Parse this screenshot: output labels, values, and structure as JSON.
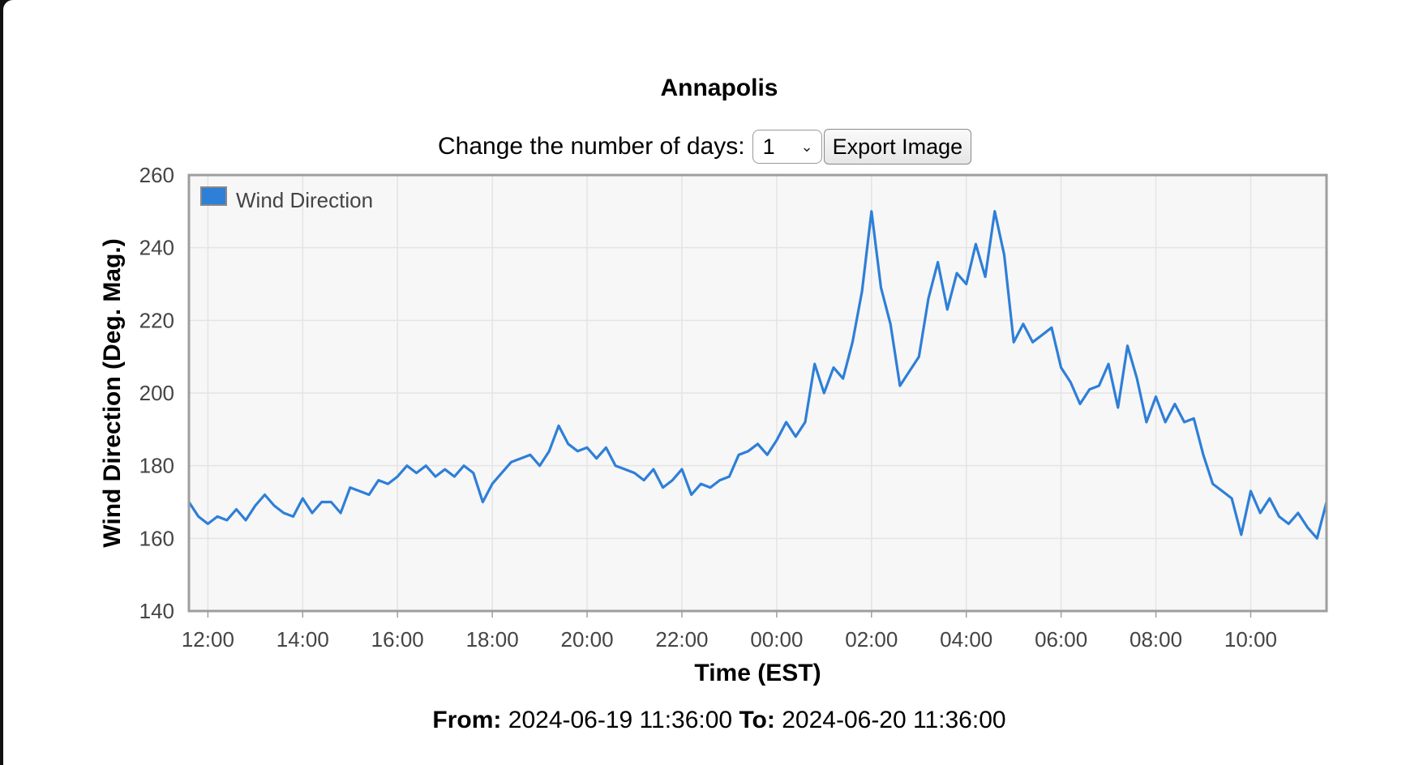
{
  "station": {
    "title": "Annapolis"
  },
  "controls": {
    "days_label": "Change the number of days:",
    "days_value": "1",
    "export_label": "Export Image"
  },
  "range": {
    "from_label": "From:",
    "from_value": "2024-06-19 11:36:00",
    "to_label": "To:",
    "to_value": "2024-06-20 11:36:00"
  },
  "colors": {
    "series": "#2e7fd8",
    "plot_bg": "#f7f7f7",
    "grid": "#e4e4e4",
    "frame": "#9e9e9e"
  },
  "chart_data": {
    "type": "line",
    "xlabel": "Time (EST)",
    "ylabel": "Wind Direction (Deg. Mag.)",
    "ylim": [
      140,
      260
    ],
    "yticks": [
      140,
      160,
      180,
      200,
      220,
      240,
      260
    ],
    "xlim": [
      "2024-06-19 11:36",
      "2024-06-20 11:36"
    ],
    "xticks": [
      {
        "t": "2024-06-19 12:00",
        "label": "12:00"
      },
      {
        "t": "2024-06-19 14:00",
        "label": "14:00"
      },
      {
        "t": "2024-06-19 16:00",
        "label": "16:00"
      },
      {
        "t": "2024-06-19 18:00",
        "label": "18:00"
      },
      {
        "t": "2024-06-19 20:00",
        "label": "20:00"
      },
      {
        "t": "2024-06-19 22:00",
        "label": "22:00"
      },
      {
        "t": "2024-06-20 00:00",
        "label": "00:00"
      },
      {
        "t": "2024-06-20 02:00",
        "label": "02:00"
      },
      {
        "t": "2024-06-20 04:00",
        "label": "04:00"
      },
      {
        "t": "2024-06-20 06:00",
        "label": "06:00"
      },
      {
        "t": "2024-06-20 08:00",
        "label": "08:00"
      },
      {
        "t": "2024-06-20 10:00",
        "label": "10:00"
      }
    ],
    "grid": true,
    "legend": {
      "position": "top-left"
    },
    "series": [
      {
        "name": "Wind Direction",
        "points": [
          [
            "2024-06-19 11:36",
            170
          ],
          [
            "2024-06-19 11:48",
            166
          ],
          [
            "2024-06-19 12:00",
            164
          ],
          [
            "2024-06-19 12:12",
            166
          ],
          [
            "2024-06-19 12:24",
            165
          ],
          [
            "2024-06-19 12:36",
            168
          ],
          [
            "2024-06-19 12:48",
            165
          ],
          [
            "2024-06-19 13:00",
            169
          ],
          [
            "2024-06-19 13:12",
            172
          ],
          [
            "2024-06-19 13:24",
            169
          ],
          [
            "2024-06-19 13:36",
            167
          ],
          [
            "2024-06-19 13:48",
            166
          ],
          [
            "2024-06-19 14:00",
            171
          ],
          [
            "2024-06-19 14:12",
            167
          ],
          [
            "2024-06-19 14:24",
            170
          ],
          [
            "2024-06-19 14:36",
            170
          ],
          [
            "2024-06-19 14:48",
            167
          ],
          [
            "2024-06-19 15:00",
            174
          ],
          [
            "2024-06-19 15:12",
            173
          ],
          [
            "2024-06-19 15:24",
            172
          ],
          [
            "2024-06-19 15:36",
            176
          ],
          [
            "2024-06-19 15:48",
            175
          ],
          [
            "2024-06-19 16:00",
            177
          ],
          [
            "2024-06-19 16:12",
            180
          ],
          [
            "2024-06-19 16:24",
            178
          ],
          [
            "2024-06-19 16:36",
            180
          ],
          [
            "2024-06-19 16:48",
            177
          ],
          [
            "2024-06-19 17:00",
            179
          ],
          [
            "2024-06-19 17:12",
            177
          ],
          [
            "2024-06-19 17:24",
            180
          ],
          [
            "2024-06-19 17:36",
            178
          ],
          [
            "2024-06-19 17:48",
            170
          ],
          [
            "2024-06-19 18:00",
            175
          ],
          [
            "2024-06-19 18:12",
            178
          ],
          [
            "2024-06-19 18:24",
            181
          ],
          [
            "2024-06-19 18:36",
            182
          ],
          [
            "2024-06-19 18:48",
            183
          ],
          [
            "2024-06-19 19:00",
            180
          ],
          [
            "2024-06-19 19:12",
            184
          ],
          [
            "2024-06-19 19:24",
            191
          ],
          [
            "2024-06-19 19:36",
            186
          ],
          [
            "2024-06-19 19:48",
            184
          ],
          [
            "2024-06-19 20:00",
            185
          ],
          [
            "2024-06-19 20:12",
            182
          ],
          [
            "2024-06-19 20:24",
            185
          ],
          [
            "2024-06-19 20:36",
            180
          ],
          [
            "2024-06-19 20:48",
            179
          ],
          [
            "2024-06-19 21:00",
            178
          ],
          [
            "2024-06-19 21:12",
            176
          ],
          [
            "2024-06-19 21:24",
            179
          ],
          [
            "2024-06-19 21:36",
            174
          ],
          [
            "2024-06-19 21:48",
            176
          ],
          [
            "2024-06-19 22:00",
            179
          ],
          [
            "2024-06-19 22:12",
            172
          ],
          [
            "2024-06-19 22:24",
            175
          ],
          [
            "2024-06-19 22:36",
            174
          ],
          [
            "2024-06-19 22:48",
            176
          ],
          [
            "2024-06-19 23:00",
            177
          ],
          [
            "2024-06-19 23:12",
            183
          ],
          [
            "2024-06-19 23:24",
            184
          ],
          [
            "2024-06-19 23:36",
            186
          ],
          [
            "2024-06-19 23:48",
            183
          ],
          [
            "2024-06-20 00:00",
            187
          ],
          [
            "2024-06-20 00:12",
            192
          ],
          [
            "2024-06-20 00:24",
            188
          ],
          [
            "2024-06-20 00:36",
            192
          ],
          [
            "2024-06-20 00:48",
            208
          ],
          [
            "2024-06-20 01:00",
            200
          ],
          [
            "2024-06-20 01:12",
            207
          ],
          [
            "2024-06-20 01:24",
            204
          ],
          [
            "2024-06-20 01:36",
            214
          ],
          [
            "2024-06-20 01:48",
            228
          ],
          [
            "2024-06-20 02:00",
            250
          ],
          [
            "2024-06-20 02:12",
            229
          ],
          [
            "2024-06-20 02:24",
            219
          ],
          [
            "2024-06-20 02:36",
            202
          ],
          [
            "2024-06-20 02:48",
            206
          ],
          [
            "2024-06-20 03:00",
            210
          ],
          [
            "2024-06-20 03:12",
            226
          ],
          [
            "2024-06-20 03:24",
            236
          ],
          [
            "2024-06-20 03:36",
            223
          ],
          [
            "2024-06-20 03:48",
            233
          ],
          [
            "2024-06-20 04:00",
            230
          ],
          [
            "2024-06-20 04:12",
            241
          ],
          [
            "2024-06-20 04:24",
            232
          ],
          [
            "2024-06-20 04:36",
            250
          ],
          [
            "2024-06-20 04:48",
            238
          ],
          [
            "2024-06-20 05:00",
            214
          ],
          [
            "2024-06-20 05:12",
            219
          ],
          [
            "2024-06-20 05:24",
            214
          ],
          [
            "2024-06-20 05:36",
            216
          ],
          [
            "2024-06-20 05:48",
            218
          ],
          [
            "2024-06-20 06:00",
            207
          ],
          [
            "2024-06-20 06:12",
            203
          ],
          [
            "2024-06-20 06:24",
            197
          ],
          [
            "2024-06-20 06:36",
            201
          ],
          [
            "2024-06-20 06:48",
            202
          ],
          [
            "2024-06-20 07:00",
            208
          ],
          [
            "2024-06-20 07:12",
            196
          ],
          [
            "2024-06-20 07:24",
            213
          ],
          [
            "2024-06-20 07:36",
            204
          ],
          [
            "2024-06-20 07:48",
            192
          ],
          [
            "2024-06-20 08:00",
            199
          ],
          [
            "2024-06-20 08:12",
            192
          ],
          [
            "2024-06-20 08:24",
            197
          ],
          [
            "2024-06-20 08:36",
            192
          ],
          [
            "2024-06-20 08:48",
            193
          ],
          [
            "2024-06-20 09:00",
            183
          ],
          [
            "2024-06-20 09:12",
            175
          ],
          [
            "2024-06-20 09:24",
            173
          ],
          [
            "2024-06-20 09:36",
            171
          ],
          [
            "2024-06-20 09:48",
            161
          ],
          [
            "2024-06-20 10:00",
            173
          ],
          [
            "2024-06-20 10:12",
            167
          ],
          [
            "2024-06-20 10:24",
            171
          ],
          [
            "2024-06-20 10:36",
            166
          ],
          [
            "2024-06-20 10:48",
            164
          ],
          [
            "2024-06-20 11:00",
            167
          ],
          [
            "2024-06-20 11:12",
            163
          ],
          [
            "2024-06-20 11:24",
            160
          ],
          [
            "2024-06-20 11:36",
            170
          ]
        ]
      }
    ]
  }
}
